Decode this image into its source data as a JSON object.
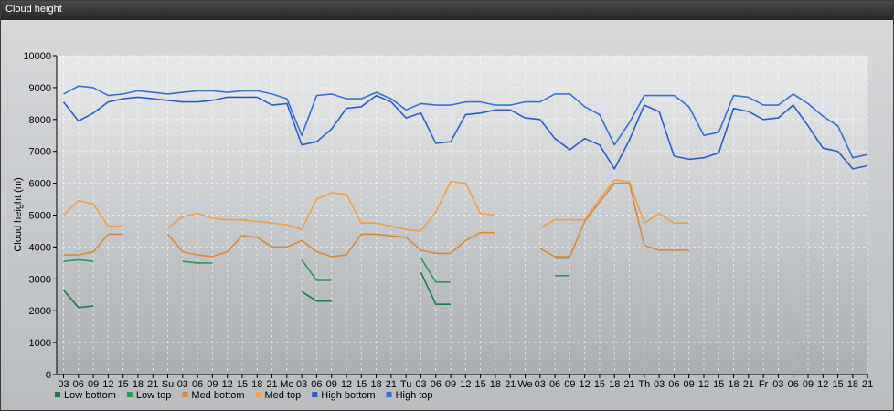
{
  "window": {
    "title": "Cloud height"
  },
  "chart_data": {
    "type": "line",
    "title": "",
    "xlabel": "",
    "ylabel": "Cloud height (m)",
    "ylim": [
      0,
      10000
    ],
    "yticks": [
      0,
      1000,
      2000,
      3000,
      4000,
      5000,
      6000,
      7000,
      8000,
      9000,
      10000
    ],
    "grid": true,
    "legend_position": "bottom-left",
    "categories": [
      "03",
      "06",
      "09",
      "12",
      "15",
      "18",
      "21",
      "Su",
      "03",
      "06",
      "09",
      "12",
      "15",
      "18",
      "21",
      "Mo",
      "03",
      "06",
      "09",
      "12",
      "15",
      "18",
      "21",
      "Tu",
      "03",
      "06",
      "09",
      "12",
      "15",
      "18",
      "21",
      "We",
      "03",
      "06",
      "09",
      "12",
      "15",
      "18",
      "21",
      "Th",
      "03",
      "06",
      "09",
      "12",
      "15",
      "18",
      "21",
      "Fr",
      "03",
      "06",
      "09",
      "12",
      "15",
      "18",
      "21"
    ],
    "series": [
      {
        "name": "Low bottom",
        "color": "#1f7a4a",
        "values": [
          2650,
          2100,
          2150,
          null,
          null,
          null,
          null,
          null,
          null,
          null,
          null,
          null,
          null,
          null,
          null,
          null,
          2600,
          2300,
          2300,
          null,
          null,
          null,
          null,
          null,
          3200,
          2200,
          2200,
          null,
          null,
          null,
          null,
          null,
          null,
          3650,
          3650,
          null,
          null,
          null,
          null,
          null,
          null,
          null,
          null,
          null,
          null,
          null,
          null,
          null,
          null,
          null,
          null,
          null,
          null,
          null,
          null
        ]
      },
      {
        "name": "Low top",
        "color": "#2a9a5a",
        "values": [
          3550,
          3600,
          3550,
          null,
          null,
          null,
          null,
          null,
          3550,
          3500,
          3500,
          null,
          null,
          null,
          null,
          null,
          3600,
          2950,
          2950,
          null,
          null,
          null,
          null,
          null,
          3650,
          2900,
          2900,
          null,
          null,
          null,
          null,
          null,
          null,
          3100,
          3100,
          null,
          null,
          null,
          null,
          null,
          null,
          null,
          null,
          null,
          null,
          null,
          null,
          null,
          null,
          null,
          null,
          null,
          null,
          null,
          null
        ]
      },
      {
        "name": "Med bottom",
        "color": "#d98b3a",
        "values": [
          3750,
          3750,
          3850,
          4400,
          4400,
          null,
          null,
          4400,
          3850,
          3750,
          3700,
          3850,
          4350,
          4300,
          4000,
          4000,
          4200,
          3850,
          3700,
          3750,
          4400,
          4400,
          4350,
          4300,
          3900,
          3800,
          3800,
          4200,
          4450,
          4450,
          null,
          null,
          3950,
          3700,
          3700,
          4800,
          5400,
          6000,
          6000,
          4050,
          3900,
          3900,
          3900,
          null,
          null,
          null,
          null,
          null,
          null,
          null,
          null,
          null,
          null,
          null,
          null
        ]
      },
      {
        "name": "Med top",
        "color": "#f0a048",
        "values": [
          5000,
          5450,
          5350,
          4650,
          4650,
          null,
          null,
          4600,
          4950,
          5050,
          4900,
          4850,
          4850,
          4800,
          4750,
          4700,
          4550,
          5500,
          5700,
          5650,
          4750,
          4750,
          4650,
          4550,
          4500,
          5100,
          6050,
          6000,
          5050,
          5000,
          null,
          null,
          4600,
          4850,
          4850,
          4850,
          5500,
          6100,
          6050,
          4750,
          5050,
          4750,
          4750,
          null,
          null,
          null,
          null,
          null,
          null,
          null,
          null,
          null,
          null,
          null,
          null
        ]
      },
      {
        "name": "High bottom",
        "color": "#2c5fc9",
        "values": [
          8550,
          7950,
          8200,
          8550,
          8650,
          8700,
          8650,
          8600,
          8550,
          8550,
          8600,
          8700,
          8700,
          8700,
          8450,
          8500,
          7200,
          7300,
          7700,
          8350,
          8400,
          8750,
          8550,
          8050,
          8200,
          7250,
          7300,
          8150,
          8200,
          8300,
          8300,
          8050,
          8000,
          7400,
          7050,
          7400,
          7200,
          6450,
          7350,
          8450,
          8250,
          6850,
          6750,
          6800,
          6950,
          8350,
          8250,
          8000,
          8050,
          8450,
          7800,
          7100,
          7000,
          6450,
          6550
        ]
      },
      {
        "name": "High top",
        "color": "#3a6fd8",
        "values": [
          8800,
          9050,
          9000,
          8750,
          8800,
          8900,
          8850,
          8800,
          8850,
          8900,
          8900,
          8850,
          8900,
          8900,
          8800,
          8650,
          7500,
          8750,
          8800,
          8650,
          8650,
          8850,
          8650,
          8300,
          8500,
          8450,
          8450,
          8550,
          8550,
          8450,
          8450,
          8550,
          8550,
          8800,
          8800,
          8400,
          8150,
          7200,
          7900,
          8750,
          8750,
          8750,
          8400,
          7500,
          7600,
          8750,
          8700,
          8450,
          8450,
          8800,
          8500,
          8100,
          7800,
          6800,
          6900
        ]
      }
    ]
  }
}
